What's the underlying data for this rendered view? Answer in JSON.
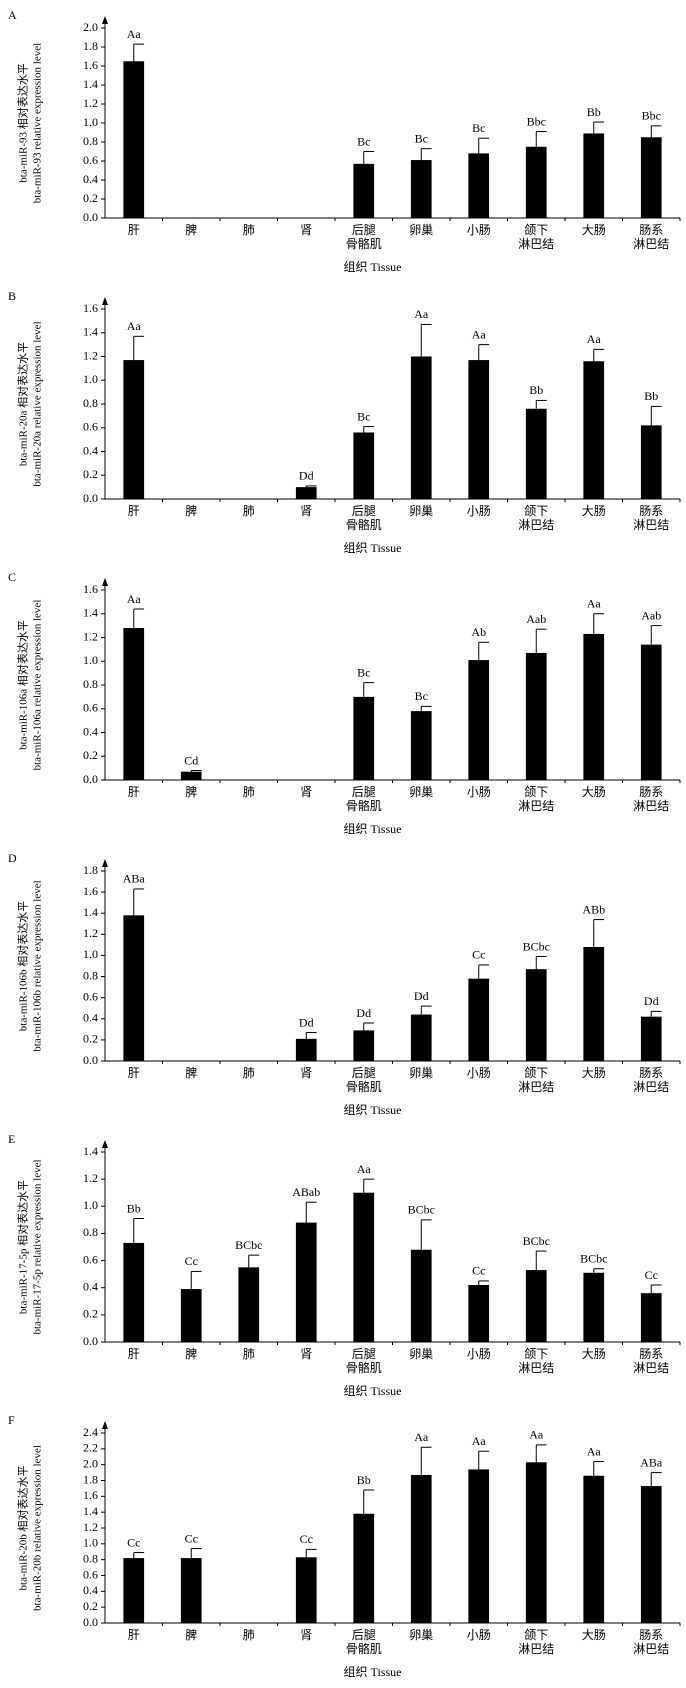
{
  "chart_data": [
    {
      "type": "bar",
      "panel": "A",
      "ylabel": [
        "bta-miR-93 相对表达水平",
        "bta-miR-93 relative expression level"
      ],
      "xlabel": "组织 Tissue",
      "color": "#000000",
      "categories": [
        "肝",
        "脾",
        "肺",
        "肾",
        "后腿\n骨骼肌",
        "卵巢",
        "小肠",
        "颌下\n淋巴结",
        "大肠",
        "肠系\n淋巴结"
      ],
      "values": [
        1.65,
        0,
        0,
        0,
        0.57,
        0.61,
        0.68,
        0.75,
        0.89,
        0.85
      ],
      "errors": [
        0.18,
        0,
        0,
        0,
        0.13,
        0.12,
        0.16,
        0.16,
        0.12,
        0.12
      ],
      "letters": [
        "Aa",
        null,
        null,
        null,
        "Bc",
        "Bc",
        "Bc",
        "Bbc",
        "Bb",
        "Bbc"
      ],
      "ylim": [
        0,
        2
      ],
      "yticks": [
        {
          "value": 0,
          "label": "0.0"
        },
        {
          "value": 0.2,
          "label": "0.2"
        },
        {
          "value": 0.4,
          "label": "0.4"
        },
        {
          "value": 0.6,
          "label": "0.6"
        },
        {
          "value": 0.8,
          "label": "0.8"
        },
        {
          "value": 1,
          "label": "1.0"
        },
        {
          "value": 1.2,
          "label": "1.2"
        },
        {
          "value": 1.4,
          "label": "1.4"
        },
        {
          "value": 1.6,
          "label": "1.6"
        },
        {
          "value": 1.8,
          "label": "1.8"
        },
        {
          "value": 2,
          "label": "2.0"
        }
      ]
    },
    {
      "type": "bar",
      "panel": "B",
      "ylabel": [
        "bta-miR-20a 相对表达水平",
        "bta-miR-20a relative expression level"
      ],
      "xlabel": "组织 Tissue",
      "color": "#000000",
      "categories": [
        "肝",
        "脾",
        "肺",
        "肾",
        "后腿\n骨骼肌",
        "卵巢",
        "小肠",
        "颌下\n淋巴结",
        "大肠",
        "肠系\n淋巴结"
      ],
      "values": [
        1.17,
        0,
        0,
        0.1,
        0.56,
        1.2,
        1.17,
        0.76,
        1.16,
        0.62
      ],
      "errors": [
        0.2,
        0,
        0,
        0.01,
        0.05,
        0.27,
        0.13,
        0.07,
        0.1,
        0.16
      ],
      "letters": [
        "Aa",
        null,
        null,
        "Dd",
        "Bc",
        "Aa",
        "Aa",
        "Bb",
        "Aa",
        "Bb"
      ],
      "ylim": [
        0,
        1.6
      ],
      "yticks": [
        {
          "value": 0,
          "label": "0.0"
        },
        {
          "value": 0.2,
          "label": "0.2"
        },
        {
          "value": 0.4,
          "label": "0.4"
        },
        {
          "value": 0.6,
          "label": "0.6"
        },
        {
          "value": 0.8,
          "label": "0.8"
        },
        {
          "value": 1,
          "label": "1.0"
        },
        {
          "value": 1.2,
          "label": "1.2"
        },
        {
          "value": 1.4,
          "label": "1.4"
        },
        {
          "value": 1.6,
          "label": "1.6"
        }
      ]
    },
    {
      "type": "bar",
      "panel": "C",
      "ylabel": [
        "bta-miR-106a 相对表达水平",
        "bta-miR-106a relative expression level"
      ],
      "xlabel": "组织 Tissue",
      "color": "#000000",
      "categories": [
        "肝",
        "脾",
        "肺",
        "肾",
        "后腿\n骨骼肌",
        "卵巢",
        "小肠",
        "颌下\n淋巴结",
        "大肠",
        "肠系\n淋巴结"
      ],
      "values": [
        1.28,
        0.07,
        0,
        0,
        0.7,
        0.58,
        1.01,
        1.07,
        1.23,
        1.14
      ],
      "errors": [
        0.16,
        0.01,
        0,
        0,
        0.12,
        0.04,
        0.15,
        0.2,
        0.17,
        0.16
      ],
      "letters": [
        "Aa",
        "Cd",
        null,
        null,
        "Bc",
        "Bc",
        "Ab",
        "Aab",
        "Aa",
        "Aab"
      ],
      "ylim": [
        0,
        1.6
      ],
      "yticks": [
        {
          "value": 0,
          "label": "0.0"
        },
        {
          "value": 0.2,
          "label": "0.2"
        },
        {
          "value": 0.4,
          "label": "0.4"
        },
        {
          "value": 0.6,
          "label": "0.6"
        },
        {
          "value": 0.8,
          "label": "0.8"
        },
        {
          "value": 1,
          "label": "1.0"
        },
        {
          "value": 1.2,
          "label": "1.2"
        },
        {
          "value": 1.4,
          "label": "1.4"
        },
        {
          "value": 1.6,
          "label": "1.6"
        }
      ]
    },
    {
      "type": "bar",
      "panel": "D",
      "ylabel": [
        "bta-miR-106b 相对表达水平",
        "bta-miR-106b relative expression level"
      ],
      "xlabel": "组织 Tissue",
      "color": "#000000",
      "categories": [
        "肝",
        "脾",
        "肺",
        "肾",
        "后腿\n骨骼肌",
        "卵巢",
        "小肠",
        "颌下\n淋巴结",
        "大肠",
        "肠系\n淋巴结"
      ],
      "values": [
        1.38,
        0,
        0,
        0.21,
        0.29,
        0.44,
        0.78,
        0.87,
        1.08,
        0.42
      ],
      "errors": [
        0.25,
        0,
        0,
        0.06,
        0.07,
        0.08,
        0.13,
        0.12,
        0.26,
        0.05
      ],
      "letters": [
        "ABa",
        null,
        null,
        "Dd",
        "Dd",
        "Dd",
        "Cc",
        "BCbc",
        "ABb",
        "Dd"
      ],
      "ylim": [
        0,
        1.8
      ],
      "yticks": [
        {
          "value": 0,
          "label": "0.0"
        },
        {
          "value": 0.2,
          "label": "0.2"
        },
        {
          "value": 0.4,
          "label": "0.4"
        },
        {
          "value": 0.6,
          "label": "0.6"
        },
        {
          "value": 0.8,
          "label": "0.8"
        },
        {
          "value": 1,
          "label": "1.0"
        },
        {
          "value": 1.2,
          "label": "1.2"
        },
        {
          "value": 1.4,
          "label": "1.4"
        },
        {
          "value": 1.6,
          "label": "1.6"
        },
        {
          "value": 1.8,
          "label": "1.8"
        }
      ]
    },
    {
      "type": "bar",
      "panel": "E",
      "ylabel": [
        "bta-miR-17-5p 相对表达水平",
        "bta-miR-17-5p relative expression level"
      ],
      "xlabel": "组织 Tissue",
      "color": "#000000",
      "categories": [
        "肝",
        "脾",
        "肺",
        "肾",
        "后腿\n骨骼肌",
        "卵巢",
        "小肠",
        "颌下\n淋巴结",
        "大肠",
        "肠系\n淋巴结"
      ],
      "values": [
        0.73,
        0.39,
        0.55,
        0.88,
        1.1,
        0.68,
        0.42,
        0.53,
        0.51,
        0.36
      ],
      "errors": [
        0.18,
        0.13,
        0.09,
        0.15,
        0.1,
        0.22,
        0.03,
        0.14,
        0.03,
        0.06
      ],
      "letters": [
        "Bb",
        "Cc",
        "BCbc",
        "ABab",
        "Aa",
        "BCbc",
        "Cc",
        "BCbc",
        "BCbc",
        "Cc"
      ],
      "ylim": [
        0,
        1.4
      ],
      "yticks": [
        {
          "value": 0,
          "label": "0.0"
        },
        {
          "value": 0.2,
          "label": "0.2"
        },
        {
          "value": 0.4,
          "label": "0.4"
        },
        {
          "value": 0.6,
          "label": "0.6"
        },
        {
          "value": 0.8,
          "label": "0.8"
        },
        {
          "value": 1,
          "label": "1.0"
        },
        {
          "value": 1.2,
          "label": "1.2"
        },
        {
          "value": 1.4,
          "label": "1.4"
        }
      ]
    },
    {
      "type": "bar",
      "panel": "F",
      "ylabel": [
        "bta-miR-20b 相对表达水平",
        "bta-miR-20b relative expression level"
      ],
      "xlabel": "组织 Tissue",
      "color": "#000000",
      "categories": [
        "肝",
        "脾",
        "肺",
        "肾",
        "后腿\n骨骼肌",
        "卵巢",
        "小肠",
        "颌下\n淋巴结",
        "大肠",
        "肠系\n淋巴结"
      ],
      "values": [
        0.82,
        0.82,
        0,
        0.83,
        1.38,
        1.87,
        1.94,
        2.03,
        1.86,
        1.73
      ],
      "errors": [
        0.07,
        0.12,
        0,
        0.1,
        0.3,
        0.35,
        0.23,
        0.22,
        0.18,
        0.17
      ],
      "letters": [
        "Cc",
        "Cc",
        null,
        "Cc",
        "Bb",
        "Aa",
        "Aa",
        "Aa",
        "Aa",
        "ABa"
      ],
      "ylim": [
        0,
        2.4
      ],
      "yticks": [
        {
          "value": 0,
          "label": "0.0"
        },
        {
          "value": 0.2,
          "label": "0.2"
        },
        {
          "value": 0.4,
          "label": "0.4"
        },
        {
          "value": 0.6,
          "label": "0.6"
        },
        {
          "value": 0.8,
          "label": "0.8"
        },
        {
          "value": 1,
          "label": "1.0"
        },
        {
          "value": 1.2,
          "label": "1.2"
        },
        {
          "value": 1.4,
          "label": "1.4"
        },
        {
          "value": 1.6,
          "label": "1.6"
        },
        {
          "value": 1.8,
          "label": "1.8"
        },
        {
          "value": 2,
          "label": "2.0"
        },
        {
          "value": 2.2,
          "label": "2.2"
        },
        {
          "value": 2.4,
          "label": "2.4"
        }
      ]
    }
  ]
}
